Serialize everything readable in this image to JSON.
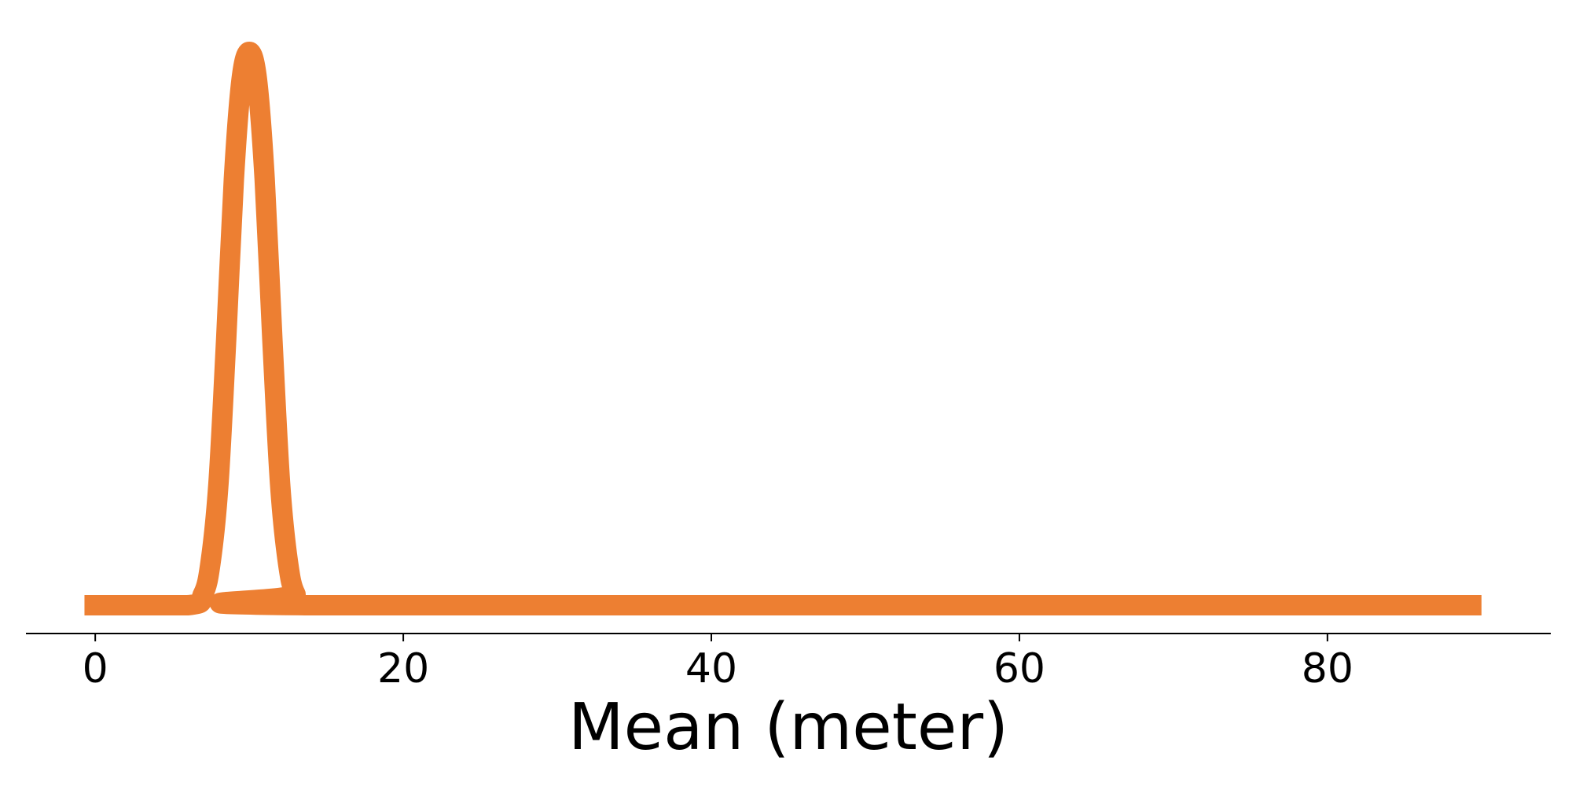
{
  "chart_data": {
    "type": "line",
    "xlabel": "Mean (meter)",
    "ylabel": "",
    "title": "",
    "xlim": [
      -4.5,
      94.5
    ],
    "ylim": [
      0,
      1
    ],
    "x_ticks": [
      0,
      20,
      40,
      60,
      80
    ],
    "x_tick_labels": [
      "0",
      "20",
      "40",
      "60",
      "80"
    ],
    "y_axis_visible": false,
    "grid": false,
    "series": [
      {
        "color": "#ED7F32",
        "x": [
          -0.7,
          6.0,
          7.0,
          7.5,
          8.0,
          8.5,
          9.0,
          9.5,
          10.0,
          10.5,
          11.0,
          11.5,
          12.0,
          12.5,
          13.0,
          14.0,
          90.0
        ],
        "y": [
          0.0,
          0.0,
          0.02,
          0.08,
          0.22,
          0.48,
          0.77,
          0.95,
          1.0,
          0.95,
          0.77,
          0.48,
          0.22,
          0.08,
          0.02,
          0.0,
          0.0
        ]
      }
    ]
  }
}
